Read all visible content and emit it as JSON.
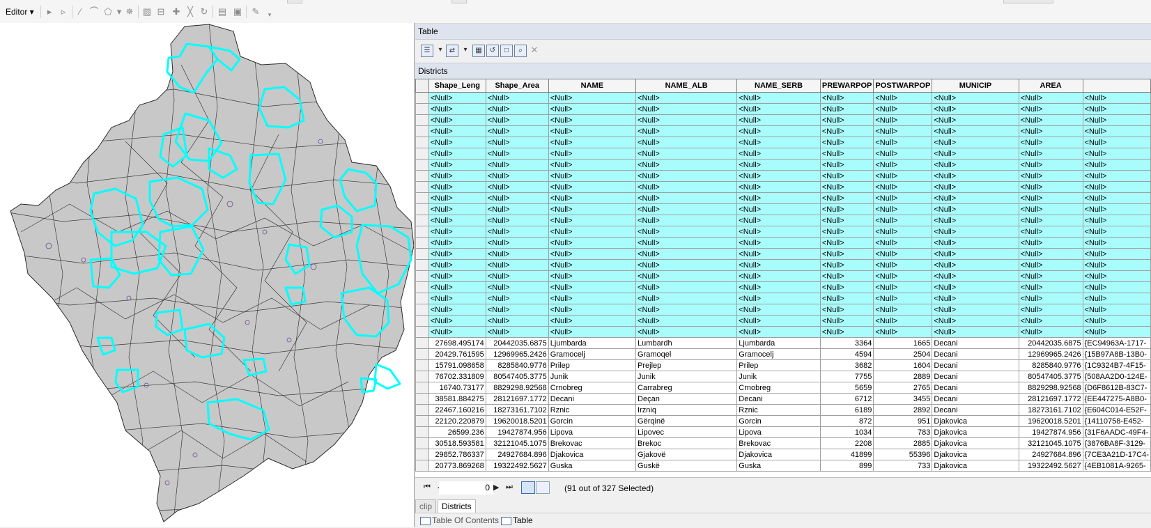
{
  "toolbar": {
    "editor_menu": "Editor ▾"
  },
  "table_window": {
    "title": "Table",
    "layer_name": "Districts"
  },
  "grid": {
    "columns": [
      "Shape_Leng",
      "Shape_Area",
      "NAME",
      "NAME_ALB",
      "NAME_SERB",
      "PREWARPOP",
      "POSTWARPOP",
      "MUNICIP",
      "AREA",
      ""
    ],
    "null_text": "<Null>",
    "selected_row_count": 22,
    "rows": [
      [
        "27698.495174",
        "20442035.6875",
        "Ljumbarda",
        "Lumbardh",
        "Ljumbarda",
        "3364",
        "1665",
        "Decani",
        "20442035.6875",
        "{EC94963A-1717-"
      ],
      [
        "20429.761595",
        "12969965.2426",
        "Gramocelj",
        "Gramoqel",
        "Gramocelj",
        "4594",
        "2504",
        "Decani",
        "12969965.2426",
        "{15B97A8B-13B0-"
      ],
      [
        "15791.098658",
        "8285840.9776",
        "Prilep",
        "Prejlep",
        "Prilep",
        "3682",
        "1604",
        "Decani",
        "8285840.9776",
        "{1C9324B7-4F15-"
      ],
      [
        "76702.331809",
        "80547405.3775",
        "Junik",
        "Junik",
        "Junik",
        "7755",
        "2889",
        "Decani",
        "80547405.3775",
        "{508AA2D0-124E-"
      ],
      [
        "16740.73177",
        "8829298.92568",
        "Crnobreg",
        "Carrabreg",
        "Crnobreg",
        "5659",
        "2765",
        "Decani",
        "8829298.92568",
        "{D6F8612B-83C7-"
      ],
      [
        "38581.884275",
        "28121697.1772",
        "Decani",
        "Deçan",
        "Decani",
        "6712",
        "3455",
        "Decani",
        "28121697.1772",
        "{EE447275-A8B0-"
      ],
      [
        "22467.160216",
        "18273161.7102",
        "Rznic",
        "Irzniq",
        "Rznic",
        "6189",
        "2892",
        "Decani",
        "18273161.7102",
        "{E604C014-E52F-"
      ],
      [
        "22120.220879",
        "19620018.5201",
        "Gorcin",
        "Gërqinë",
        "Gorcin",
        "872",
        "951",
        "Djakovica",
        "19620018.5201",
        "{14110758-E452-"
      ],
      [
        "26599.236",
        "19427874.956",
        "Lipova",
        "Lipovec",
        "Lipova",
        "1034",
        "783",
        "Djakovica",
        "19427874.956",
        "{31F6AADC-49F4-"
      ],
      [
        "30518.593581",
        "32121045.1075",
        "Brekovac",
        "Brekoc",
        "Brekovac",
        "2208",
        "2885",
        "Djakovica",
        "32121045.1075",
        "{3876BA8F-3129-"
      ],
      [
        "29852.786337",
        "24927684.896",
        "Djakovica",
        "Gjakovë",
        "Djakovica",
        "41899",
        "55396",
        "Djakovica",
        "24927684.896",
        "{7CE3A21D-17C4-"
      ],
      [
        "20773.869268",
        "19322492.5627",
        "Guska",
        "Guskë",
        "Guska",
        "899",
        "733",
        "Djakovica",
        "19322492.5627",
        "{4EB1081A-9265-"
      ]
    ]
  },
  "nav": {
    "first": "⏮",
    "prev": "◀",
    "record": "0",
    "next": "▶",
    "last": "⏭",
    "status": "(91 out of 327 Selected)"
  },
  "layer_tabs": [
    "clip",
    "Districts"
  ],
  "bottom_tabs": [
    "Table Of Contents",
    "Table"
  ],
  "colors": {
    "selection": "#a9fcfc",
    "map_fill": "#c8c8c8",
    "highlight": "#00ffff"
  }
}
